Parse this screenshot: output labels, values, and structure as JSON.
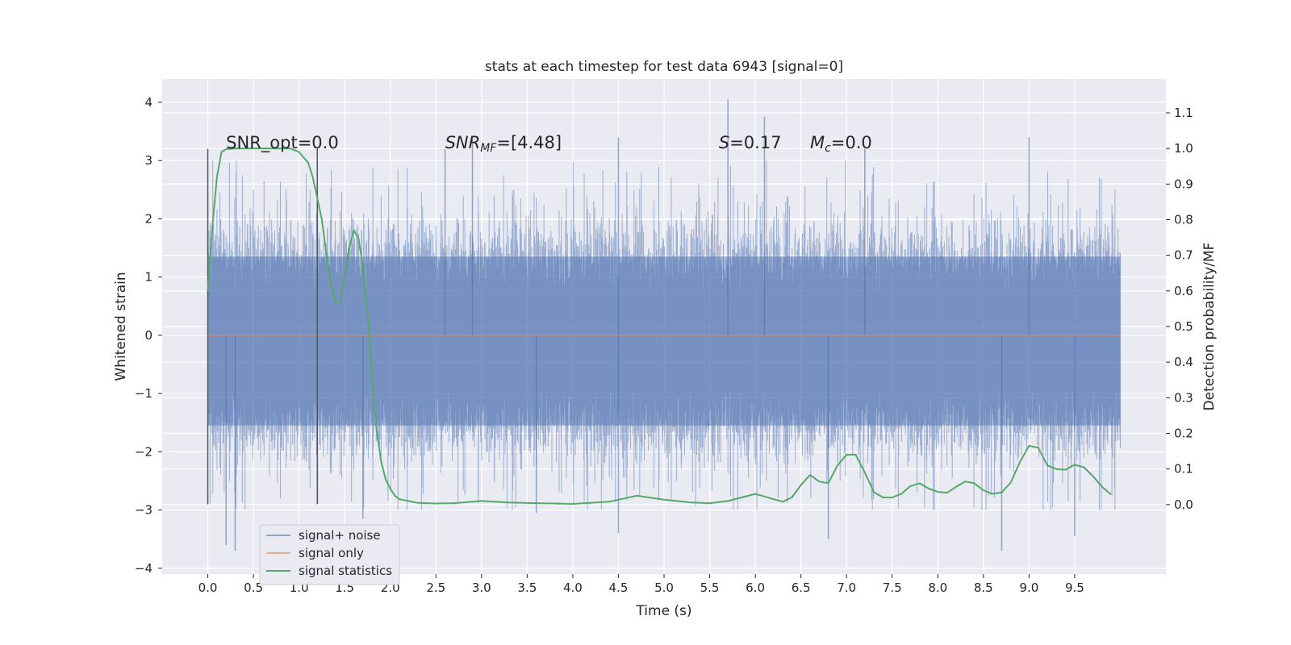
{
  "chart_data": {
    "type": "line",
    "title": "stats at each timestep for test data 6943 [signal=0]",
    "xlabel": "Time (s)",
    "ylabel": "Whitened strain",
    "ylabel_right": "Detection probability/MF",
    "xlim": [
      -0.5,
      10.5
    ],
    "ylim": [
      -4.1,
      4.4
    ],
    "ylim_right": [
      -0.195,
      1.195
    ],
    "x_ticks": [
      "0.0",
      "0.5",
      "1.0",
      "1.5",
      "2.0",
      "2.5",
      "3.0",
      "3.5",
      "4.0",
      "4.5",
      "5.0",
      "5.5",
      "6.0",
      "6.5",
      "7.0",
      "7.5",
      "8.0",
      "8.5",
      "9.0",
      "9.5"
    ],
    "y_ticks": [
      "4",
      "3",
      "2",
      "1",
      "0",
      "−1",
      "−2",
      "−3",
      "−4"
    ],
    "y_right_ticks": [
      "1.1",
      "1.0",
      "0.9",
      "0.8",
      "0.7",
      "0.6",
      "0.5",
      "0.4",
      "0.3",
      "0.2",
      "0.1",
      "0.0"
    ],
    "grid": true,
    "legend_placement": "lower-left",
    "colors": {
      "noise": "#4c72b0",
      "signal": "#dd8452",
      "stats": "#55a868",
      "background": "#eaeaf2",
      "vline": "#555555"
    },
    "series": [
      {
        "name": "signal+ noise",
        "x_range": [
          0.0,
          10.0
        ],
        "band_lower": -1.55,
        "band_upper": 1.35,
        "peaks": [
          [
            2.6,
            3.2
          ],
          [
            2.9,
            3.4
          ],
          [
            5.7,
            4.05
          ],
          [
            6.1,
            3.75
          ],
          [
            4.5,
            3.4
          ],
          [
            7.2,
            3.2
          ],
          [
            9.0,
            3.4
          ],
          [
            3.6,
            -3.05
          ],
          [
            4.5,
            -3.4
          ],
          [
            6.8,
            -3.5
          ],
          [
            8.7,
            -3.7
          ],
          [
            9.5,
            -3.45
          ],
          [
            0.2,
            -3.6
          ],
          [
            0.3,
            -3.7
          ],
          [
            1.7,
            -3.15
          ]
        ]
      },
      {
        "name": "signal only",
        "x": [
          0.0,
          10.0
        ],
        "y": [
          0.0,
          0.0
        ]
      },
      {
        "name": "signal statistics",
        "axis": "right",
        "x": [
          0.0,
          0.05,
          0.1,
          0.15,
          0.2,
          0.3,
          0.5,
          0.7,
          0.9,
          1.0,
          1.1,
          1.15,
          1.2,
          1.25,
          1.3,
          1.35,
          1.4,
          1.45,
          1.5,
          1.55,
          1.6,
          1.65,
          1.7,
          1.75,
          1.8,
          1.85,
          1.9,
          1.95,
          2.0,
          2.05,
          2.1,
          2.2,
          2.3,
          2.5,
          2.7,
          3.0,
          3.3,
          3.6,
          4.0,
          4.4,
          4.7,
          5.0,
          5.3,
          5.5,
          5.7,
          6.0,
          6.3,
          6.4,
          6.5,
          6.6,
          6.7,
          6.8,
          6.9,
          7.0,
          7.1,
          7.2,
          7.3,
          7.4,
          7.5,
          7.6,
          7.7,
          7.8,
          7.9,
          8.0,
          8.1,
          8.2,
          8.3,
          8.4,
          8.5,
          8.6,
          8.7,
          8.8,
          8.9,
          9.0,
          9.1,
          9.2,
          9.3,
          9.4,
          9.5,
          9.6,
          9.7,
          9.8,
          9.9
        ],
        "y": [
          0.6,
          0.78,
          0.92,
          0.99,
          0.998,
          1.0,
          1.0,
          1.0,
          1.0,
          0.99,
          0.96,
          0.92,
          0.86,
          0.8,
          0.7,
          0.62,
          0.57,
          0.57,
          0.64,
          0.72,
          0.77,
          0.75,
          0.67,
          0.54,
          0.36,
          0.21,
          0.12,
          0.07,
          0.045,
          0.025,
          0.015,
          0.01,
          0.005,
          0.003,
          0.004,
          0.01,
          0.006,
          0.004,
          0.002,
          0.008,
          0.025,
          0.014,
          0.006,
          0.004,
          0.01,
          0.03,
          0.008,
          0.02,
          0.055,
          0.083,
          0.065,
          0.06,
          0.11,
          0.14,
          0.14,
          0.09,
          0.035,
          0.02,
          0.02,
          0.03,
          0.052,
          0.06,
          0.045,
          0.036,
          0.033,
          0.05,
          0.065,
          0.06,
          0.04,
          0.03,
          0.034,
          0.062,
          0.12,
          0.165,
          0.16,
          0.11,
          0.1,
          0.098,
          0.112,
          0.105,
          0.08,
          0.05,
          0.028
        ]
      }
    ],
    "vlines": [
      0.0,
      1.2
    ],
    "annotations": [
      {
        "text": "SNR_opt=0.0",
        "x": 0.2
      },
      {
        "symbol": "SNR",
        "subscript": "MF",
        "value": "=[4.48]",
        "x": 2.6
      },
      {
        "symbol": "S",
        "value": "=0.17",
        "x": 5.6
      },
      {
        "symbol": "M",
        "subscript": "c",
        "value": "=0.0",
        "x": 6.6
      }
    ],
    "legend": [
      "signal+ noise",
      "signal only",
      "signal statistics"
    ]
  }
}
